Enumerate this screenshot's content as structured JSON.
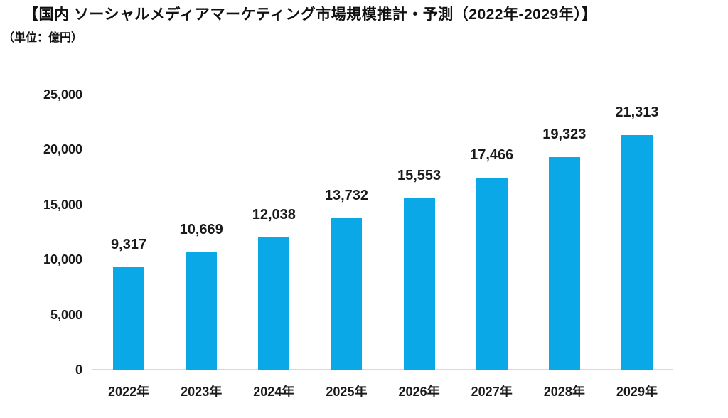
{
  "page": {
    "title": "【国内 ソーシャルメディアマーケティング市場規模推計・予測（2022年-2029年）】",
    "unit_note": "（単位：億円）"
  },
  "chart_data": {
    "type": "bar",
    "title": "国内 ソーシャルメディアマーケティング市場規模推計・予測（2022年-2029年）",
    "unit": "億円",
    "categories": [
      "2022年",
      "2023年",
      "2024年",
      "2025年",
      "2026年",
      "2027年",
      "2028年",
      "2029年"
    ],
    "values": [
      9317,
      10669,
      12038,
      13732,
      15553,
      17466,
      19323,
      21313
    ],
    "value_labels": [
      "9,317",
      "10,669",
      "12,038",
      "13,732",
      "15,553",
      "17,466",
      "19,323",
      "21,313"
    ],
    "xlabel": "",
    "ylabel": "",
    "ylim": [
      0,
      25000
    ],
    "yticks": [
      0,
      5000,
      10000,
      15000,
      20000,
      25000
    ],
    "ytick_labels": [
      "0",
      "5,000",
      "10,000",
      "15,000",
      "20,000",
      "25,000"
    ],
    "grid": false,
    "legend": false,
    "bar_color": "#0AA8E6",
    "axis_line_color": "#D9D9D9",
    "text_color": "#1A1A1A"
  }
}
